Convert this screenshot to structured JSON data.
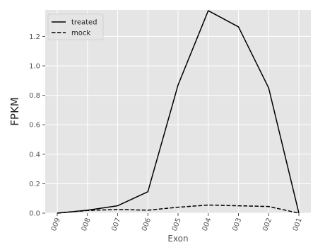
{
  "chart_data": {
    "type": "line",
    "title": "",
    "xlabel": "Exon",
    "ylabel": "FPKM",
    "categories": [
      "009",
      "008",
      "007",
      "006",
      "005",
      "004",
      "003",
      "002",
      "001"
    ],
    "series": [
      {
        "name": "treated",
        "style": "solid",
        "color": "#000000",
        "values": [
          0.0,
          0.02,
          0.05,
          0.145,
          0.87,
          1.375,
          1.265,
          0.85,
          0.0
        ]
      },
      {
        "name": "mock",
        "style": "dashed",
        "color": "#000000",
        "values": [
          0.0,
          0.018,
          0.025,
          0.02,
          0.04,
          0.055,
          0.05,
          0.045,
          0.0
        ]
      }
    ],
    "ylim": [
      0,
      1.38
    ],
    "yticks": [
      "0.0",
      "0.2",
      "0.4",
      "0.6",
      "0.8",
      "1.0",
      "1.2"
    ],
    "grid": true,
    "legend": "top-left",
    "colors": {
      "background": "#e5e5e5",
      "grid": "#ffffff",
      "text": "#555555"
    }
  }
}
